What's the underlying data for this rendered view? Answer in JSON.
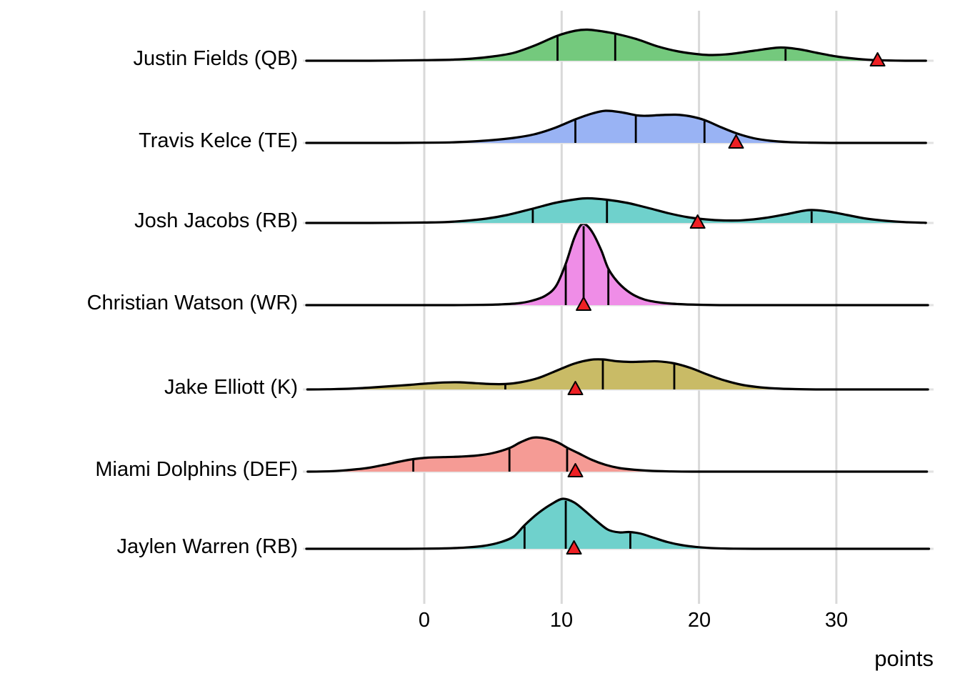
{
  "chart_data": {
    "type": "ridgeline-density",
    "title": "",
    "xlabel": "points",
    "x_ticks": [
      "0",
      "10",
      "20",
      "30"
    ],
    "x_tick_values": [
      0,
      10,
      20,
      30
    ],
    "x_range": [
      -8.7,
      37.0
    ],
    "grid": "vertical-gridlines-only",
    "gridline_color": "#d9d9d9",
    "row_line_color": "#e2e2e2",
    "outline_color": "#000000",
    "marker_color": "#ee2024",
    "players": [
      {
        "label": "Justin Fields (QB)",
        "color": "#74c97d",
        "quantiles": [
          9.7,
          13.9,
          26.3
        ],
        "actual": 33.0,
        "density": [
          [
            -8.4,
            0
          ],
          [
            -6,
            0
          ],
          [
            -4,
            0
          ],
          [
            -2,
            0.3
          ],
          [
            0,
            0.8
          ],
          [
            2,
            1.5
          ],
          [
            3.5,
            3
          ],
          [
            5,
            6
          ],
          [
            6.5,
            11
          ],
          [
            8,
            21
          ],
          [
            9.7,
            35
          ],
          [
            11,
            42
          ],
          [
            11.9,
            43.5
          ],
          [
            13,
            41
          ],
          [
            14,
            37.5
          ],
          [
            15.5,
            30
          ],
          [
            17,
            20
          ],
          [
            18.5,
            13
          ],
          [
            20,
            9
          ],
          [
            21,
            8
          ],
          [
            22.3,
            9.5
          ],
          [
            24,
            14
          ],
          [
            25.9,
            18.5
          ],
          [
            27.3,
            16
          ],
          [
            28.6,
            11
          ],
          [
            30,
            6
          ],
          [
            31.3,
            3
          ],
          [
            32.5,
            1.2
          ],
          [
            33.8,
            0.4
          ],
          [
            35,
            0
          ],
          [
            36.4,
            0
          ]
        ]
      },
      {
        "label": "Travis Kelce (TE)",
        "color": "#99b3f4",
        "quantiles": [
          11.0,
          15.4,
          20.4
        ],
        "actual": 22.7,
        "density": [
          [
            -8.4,
            0
          ],
          [
            -6,
            0
          ],
          [
            -4,
            0
          ],
          [
            -2,
            0
          ],
          [
            0,
            0.3
          ],
          [
            2,
            0.8
          ],
          [
            3.5,
            2
          ],
          [
            5,
            4
          ],
          [
            6.5,
            7
          ],
          [
            8,
            12
          ],
          [
            9.5,
            21
          ],
          [
            11,
            33
          ],
          [
            12.2,
            41
          ],
          [
            13.2,
            45
          ],
          [
            14.3,
            43
          ],
          [
            15.5,
            38.5
          ],
          [
            16.2,
            38
          ],
          [
            17.2,
            39
          ],
          [
            18.3,
            39.5
          ],
          [
            19.3,
            37.5
          ],
          [
            20.4,
            32
          ],
          [
            21.6,
            22
          ],
          [
            22.8,
            13
          ],
          [
            24,
            6.5
          ],
          [
            25.2,
            3
          ],
          [
            26.5,
            1.2
          ],
          [
            28,
            0.4
          ],
          [
            29.5,
            0
          ],
          [
            31,
            0
          ],
          [
            33,
            0
          ],
          [
            35,
            0
          ],
          [
            36.4,
            0
          ]
        ]
      },
      {
        "label": "Josh Jacobs (RB)",
        "color": "#6fd1cc",
        "quantiles": [
          7.9,
          13.3,
          28.2
        ],
        "actual": 19.9,
        "density": [
          [
            -8.4,
            0
          ],
          [
            -6,
            0
          ],
          [
            -4,
            0
          ],
          [
            -2,
            0.2
          ],
          [
            0,
            0.6
          ],
          [
            1.5,
            1.2
          ],
          [
            3,
            3
          ],
          [
            4.5,
            6
          ],
          [
            6,
            11
          ],
          [
            7.9,
            20
          ],
          [
            9.5,
            28
          ],
          [
            11,
            33
          ],
          [
            11.9,
            34.5
          ],
          [
            13.3,
            32.5
          ],
          [
            14.8,
            28
          ],
          [
            16.3,
            21
          ],
          [
            17.8,
            13.5
          ],
          [
            19.2,
            8
          ],
          [
            20.5,
            5
          ],
          [
            21.8,
            3.5
          ],
          [
            23.2,
            3.8
          ],
          [
            24.8,
            7
          ],
          [
            26.3,
            12
          ],
          [
            28,
            18
          ],
          [
            29.4,
            16
          ],
          [
            30.8,
            11
          ],
          [
            32.2,
            6
          ],
          [
            33.6,
            3
          ],
          [
            35,
            1.2
          ],
          [
            36.4,
            0.3
          ]
        ]
      },
      {
        "label": "Christian Watson (WR)",
        "color": "#ef8de7",
        "quantiles": [
          10.3,
          11.6,
          13.4
        ],
        "actual": 11.6,
        "density": [
          [
            -8.4,
            0
          ],
          [
            -6,
            0
          ],
          [
            -4,
            0
          ],
          [
            -2,
            0
          ],
          [
            0,
            0
          ],
          [
            2,
            0
          ],
          [
            4,
            0.3
          ],
          [
            5.5,
            1
          ],
          [
            6.8,
            2.5
          ],
          [
            7.8,
            6
          ],
          [
            8.8,
            13
          ],
          [
            9.6,
            27
          ],
          [
            10.3,
            58
          ],
          [
            10.9,
            93
          ],
          [
            11.4,
            112
          ],
          [
            11.8,
            112
          ],
          [
            12.3,
            100
          ],
          [
            12.9,
            76
          ],
          [
            13.4,
            51
          ],
          [
            14.1,
            32
          ],
          [
            15,
            17
          ],
          [
            16,
            8
          ],
          [
            17.2,
            3.5
          ],
          [
            18.5,
            1.5
          ],
          [
            20,
            0.5
          ],
          [
            21.5,
            0
          ],
          [
            24,
            0
          ],
          [
            27,
            0
          ],
          [
            30,
            0
          ],
          [
            33,
            0
          ],
          [
            36.4,
            0
          ]
        ]
      },
      {
        "label": "Jake Elliott (K)",
        "color": "#c9bb66",
        "quantiles": [
          5.9,
          13.0,
          18.2
        ],
        "actual": 11.0,
        "density": [
          [
            -8.4,
            0
          ],
          [
            -7,
            0.3
          ],
          [
            -5.5,
            1
          ],
          [
            -4,
            2.5
          ],
          [
            -2.5,
            4.5
          ],
          [
            -1,
            6.5
          ],
          [
            0.3,
            8.5
          ],
          [
            1.5,
            9.8
          ],
          [
            2.6,
            10
          ],
          [
            3.7,
            8.8
          ],
          [
            4.8,
            7.6
          ],
          [
            5.9,
            7.6
          ],
          [
            7,
            10
          ],
          [
            8.3,
            16
          ],
          [
            9.6,
            26
          ],
          [
            10.9,
            36
          ],
          [
            12.1,
            41.5
          ],
          [
            13,
            42
          ],
          [
            14,
            39.5
          ],
          [
            15,
            38.5
          ],
          [
            16,
            39
          ],
          [
            17,
            39.3
          ],
          [
            18.2,
            36.5
          ],
          [
            19.4,
            30
          ],
          [
            20.6,
            21
          ],
          [
            21.8,
            13
          ],
          [
            23,
            7
          ],
          [
            24.2,
            3.5
          ],
          [
            25.5,
            1.5
          ],
          [
            27,
            0.5
          ],
          [
            28.5,
            0
          ],
          [
            30.5,
            0
          ],
          [
            33,
            0
          ],
          [
            36.4,
            0
          ]
        ]
      },
      {
        "label": "Miami Dolphins (DEF)",
        "color": "#f59b95",
        "quantiles": [
          -0.8,
          6.2,
          10.4
        ],
        "actual": 11.0,
        "density": [
          [
            -8.4,
            0
          ],
          [
            -7.3,
            0.3
          ],
          [
            -6.2,
            1.2
          ],
          [
            -5.1,
            3
          ],
          [
            -4,
            5.5
          ],
          [
            -2.9,
            9.5
          ],
          [
            -1.8,
            14
          ],
          [
            -0.8,
            17.5
          ],
          [
            0.2,
            19.5
          ],
          [
            1.4,
            20.3
          ],
          [
            2.6,
            21
          ],
          [
            3.8,
            22.5
          ],
          [
            5,
            26
          ],
          [
            6.2,
            33
          ],
          [
            7,
            41
          ],
          [
            7.9,
            47.5
          ],
          [
            8.8,
            46.5
          ],
          [
            9.7,
            41
          ],
          [
            10.4,
            33.5
          ],
          [
            11.2,
            26
          ],
          [
            12.2,
            16.5
          ],
          [
            13.2,
            9.5
          ],
          [
            14.2,
            5
          ],
          [
            15.4,
            2.5
          ],
          [
            16.6,
            1
          ],
          [
            18,
            0.3
          ],
          [
            19.5,
            0
          ],
          [
            22,
            0
          ],
          [
            25,
            0
          ],
          [
            28,
            0
          ],
          [
            31,
            0
          ],
          [
            34,
            0
          ],
          [
            36.4,
            0
          ]
        ]
      },
      {
        "label": "Jaylen Warren (RB)",
        "color": "#6fd1cc",
        "quantiles": [
          7.3,
          10.3,
          15.0
        ],
        "actual": 10.9,
        "density": [
          [
            -8.4,
            0
          ],
          [
            -6,
            0
          ],
          [
            -4,
            0
          ],
          [
            -2,
            0
          ],
          [
            0,
            0.2
          ],
          [
            1.5,
            0.6
          ],
          [
            3,
            1.8
          ],
          [
            4.3,
            4
          ],
          [
            5.5,
            9
          ],
          [
            6.5,
            17
          ],
          [
            7.3,
            33
          ],
          [
            8.3,
            50
          ],
          [
            9.3,
            63
          ],
          [
            10.1,
            70
          ],
          [
            10.9,
            65
          ],
          [
            11.7,
            53
          ],
          [
            12.6,
            38
          ],
          [
            13.4,
            26.5
          ],
          [
            14.2,
            23
          ],
          [
            14.9,
            23.5
          ],
          [
            15.7,
            21.5
          ],
          [
            16.7,
            15.5
          ],
          [
            17.7,
            9.5
          ],
          [
            18.8,
            5
          ],
          [
            20,
            2.2
          ],
          [
            21.2,
            0.8
          ],
          [
            22.5,
            0.2
          ],
          [
            24,
            0
          ],
          [
            26,
            0
          ],
          [
            29,
            0
          ],
          [
            32,
            0
          ],
          [
            36.4,
            0
          ]
        ]
      }
    ]
  }
}
